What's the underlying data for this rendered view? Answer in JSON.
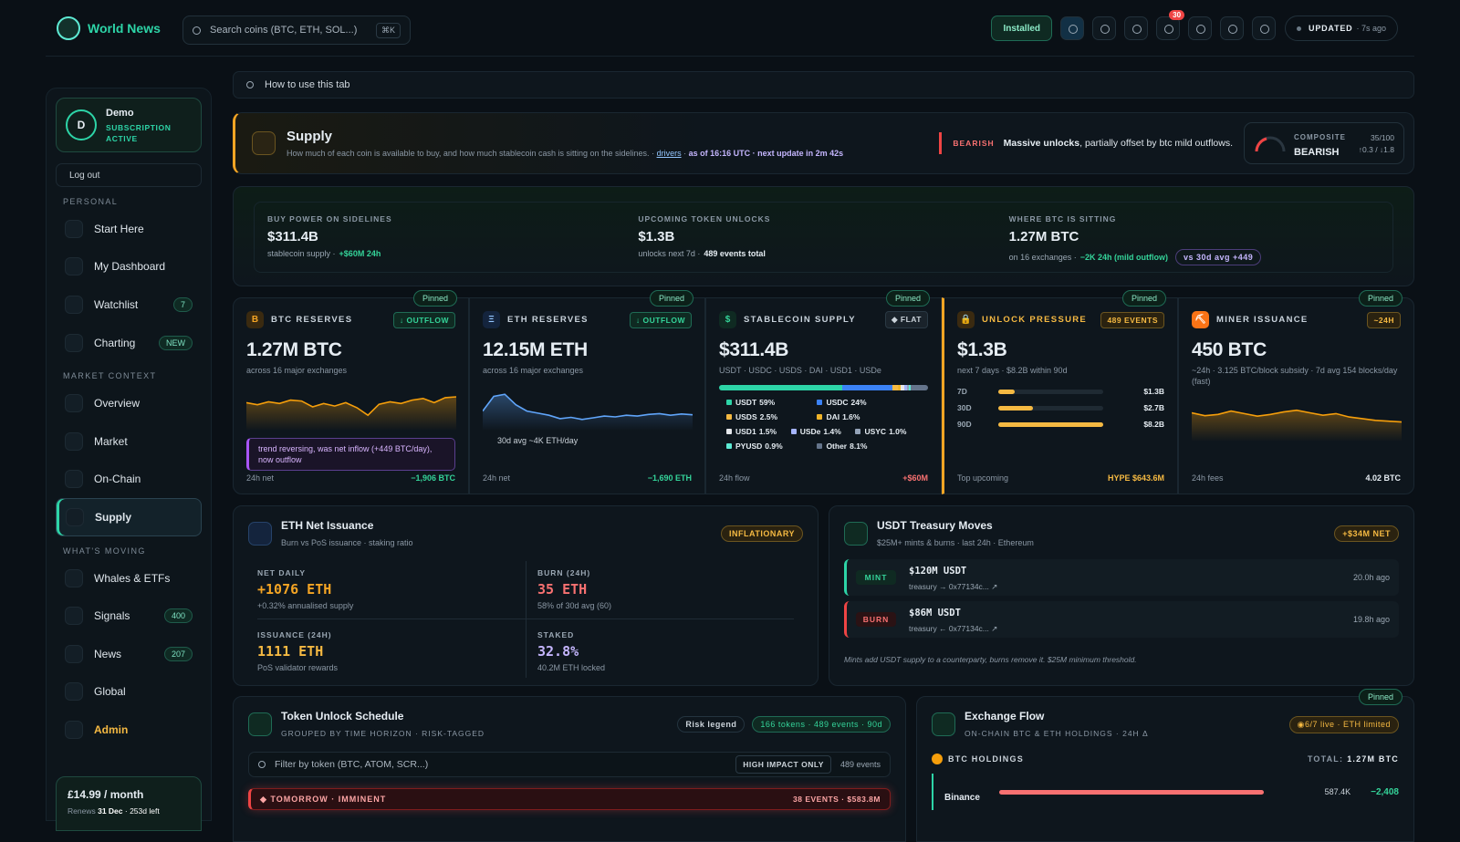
{
  "topbar": {
    "brand": "World News",
    "search": "Search coins (BTC, ETH, SOL...)",
    "shortcut": "⌘K",
    "installed": "Installed",
    "notifications": "30",
    "updated": "UPDATED",
    "updated_ago": "· 7s ago"
  },
  "sidebar": {
    "user": {
      "initial": "D",
      "name": "Demo",
      "status": "SUBSCRIPTION ACTIVE"
    },
    "logout": "Log out",
    "sections": [
      {
        "title": "PERSONAL",
        "items": [
          {
            "label": "Start Here"
          },
          {
            "label": "My Dashboard"
          },
          {
            "label": "Watchlist",
            "badge": "7"
          },
          {
            "label": "Charting",
            "badge": "NEW"
          }
        ]
      },
      {
        "title": "MARKET CONTEXT",
        "items": [
          {
            "label": "Overview"
          },
          {
            "label": "Market"
          },
          {
            "label": "On-Chain"
          },
          {
            "label": "Supply"
          }
        ]
      },
      {
        "title": "WHAT'S MOVING",
        "items": [
          {
            "label": "Whales & ETFs"
          },
          {
            "label": "Signals",
            "badge": "400"
          },
          {
            "label": "News",
            "badge": "207"
          },
          {
            "label": "Global"
          },
          {
            "label": "Admin"
          }
        ]
      }
    ],
    "plan": {
      "price": "£14.99 / month",
      "renews": "Renews",
      "date": "31 Dec",
      "left": "· 253d left"
    }
  },
  "help": "How to use this tab",
  "header": {
    "title": "Supply",
    "description": "How much of each coin is available to buy, and how much stablecoin cash is sitting on the sidelines.",
    "link": "drivers",
    "asof": "as of 16:16 UTC · next update in 2m 42s",
    "signal": "BEARISH",
    "signal_bold": "Massive unlocks",
    "signal_text": ", partially offset by btc mild outflows.",
    "composite_label": "COMPOSITE",
    "composite_value": "BEARISH",
    "score": "35/100",
    "change": "↑0.3 / ↓1.8"
  },
  "summary": [
    {
      "label": "BUY POWER ON SIDELINES",
      "value": "$311.4B",
      "sub": "stablecoin supply ·",
      "accent": "+$60M 24h"
    },
    {
      "label": "UPCOMING TOKEN UNLOCKS",
      "value": "$1.3B",
      "sub": "unlocks next 7d ·",
      "accent": "489 events total"
    },
    {
      "label": "WHERE BTC IS SITTING",
      "value": "1.27M BTC",
      "sub": "on 16 exchanges ·",
      "accent": "−2K 24h (mild outflow)",
      "pill": "vs 30d avg +449"
    }
  ],
  "pinned": "Pinned",
  "cards": [
    {
      "icon": "B",
      "title": "BTC RESERVES",
      "badge": "↓ OUTFLOW",
      "value": "1.27M BTC",
      "sub": "across 16 major exchanges",
      "foot_label": "24h net",
      "foot_value": "−1,906 BTC",
      "spark": {
        "values": [
          60,
          55,
          62,
          58,
          66,
          64,
          50,
          58,
          52,
          60,
          48,
          30,
          56,
          62,
          58,
          66,
          70,
          60,
          72,
          74
        ],
        "ylim": [
          0,
          100
        ]
      },
      "note": "trend reversing, was net inflow (+449 BTC/day), now outflow"
    },
    {
      "icon": "Ξ",
      "title": "ETH RESERVES",
      "badge": "↓ OUTFLOW",
      "value": "12.15M ETH",
      "sub": "across 16 major exchanges",
      "foot_label": "24h net",
      "foot_value": "−1,690 ETH",
      "spark": {
        "values": [
          40,
          75,
          80,
          55,
          40,
          35,
          30,
          22,
          25,
          20,
          24,
          28,
          26,
          30,
          28,
          32,
          34,
          30,
          33,
          31
        ],
        "ylim": [
          0,
          100
        ]
      },
      "note": "30d avg ~4K ETH/day"
    },
    {
      "icon": "$",
      "title": "STABLECOIN SUPPLY",
      "badge": "◆ FLAT",
      "value": "$311.4B",
      "sub": "USDT · USDC · USDS · DAI · USD1 · USDe",
      "foot_label": "24h flow",
      "foot_value": "+$60M",
      "segments": {
        "names": [
          "USDT",
          "USDC",
          "USDS",
          "DAI",
          "USD1",
          "USDe",
          "USYC",
          "PYUSD",
          "Other"
        ],
        "values": [
          59,
          24,
          2.5,
          1.6,
          1.5,
          1.4,
          1.0,
          0.9,
          8.1
        ],
        "value_labels": [
          "59%",
          "24%",
          "2.5%",
          "1.6%",
          "1.5%",
          "1.4%",
          "1.0%",
          "0.9%",
          "8.1%"
        ],
        "colors": [
          "#2dd4a7",
          "#3b82f6",
          "#f5b942",
          "#f0b429",
          "#e5e7eb",
          "#a5b4fc",
          "#94a3b8",
          "#5eead4",
          "#64748b"
        ]
      }
    },
    {
      "icon": "🔒",
      "title": "UNLOCK PRESSURE",
      "badge": "489 EVENTS",
      "value": "$1.3B",
      "sub": "next 7 days · $8.2B within 90d",
      "foot_label": "Top upcoming",
      "foot_value": "HYPE $643.6M",
      "rows": {
        "labels": [
          "7D",
          "30D",
          "90D"
        ],
        "values": [
          1.3,
          2.7,
          8.2
        ],
        "value_labels": [
          "$1.3B",
          "$2.7B",
          "$8.2B"
        ],
        "xlim": [
          0,
          8.2
        ]
      }
    },
    {
      "icon": "⛏",
      "title": "MINER ISSUANCE",
      "badge": "~24H",
      "value": "450 BTC",
      "sub": "~24h · 3.125 BTC/block subsidy · 7d avg 154 blocks/day (fast)",
      "foot_label": "24h fees",
      "foot_value": "4.02 BTC",
      "spark": {
        "values": [
          62,
          55,
          58,
          66,
          60,
          54,
          58,
          64,
          68,
          62,
          56,
          60,
          52,
          48,
          44,
          42,
          40
        ],
        "ylim": [
          0,
          100
        ]
      }
    }
  ],
  "eth_issuance": {
    "title": "ETH Net Issuance",
    "sub": "Burn vs PoS issuance · staking ratio",
    "badge": "INFLATIONARY",
    "stats": [
      {
        "label": "NET DAILY",
        "value": "+1076 ETH",
        "sub": "+0.32% annualised supply"
      },
      {
        "label": "BURN (24H)",
        "value": "35 ETH",
        "sub": "58% of 30d avg (60)"
      },
      {
        "label": "ISSUANCE (24H)",
        "value": "1111 ETH",
        "sub": "PoS validator rewards"
      },
      {
        "label": "STAKED",
        "value": "32.8%",
        "sub": "40.2M ETH locked"
      }
    ]
  },
  "usdt": {
    "title": "USDT Treasury Moves",
    "sub": "$25M+ mints & burns · last 24h · Ethereum",
    "badge": "+$34M NET",
    "rows": [
      {
        "type": "MINT",
        "amount": "$120M USDT",
        "detail": "treasury → 0x77134c... ↗",
        "time": "20.0h ago"
      },
      {
        "type": "BURN",
        "amount": "$86M USDT",
        "detail": "treasury ← 0x77134c... ↗",
        "time": "19.8h ago"
      }
    ],
    "note": "Mints add USDT supply to a counterparty, burns remove it. $25M minimum threshold."
  },
  "unlocks": {
    "title": "Token Unlock Schedule",
    "sub": "GROUPED BY TIME HORIZON · RISK-TAGGED",
    "legend": "Risk legend",
    "pill": "166 tokens · 489 events · 90d",
    "filter": "Filter by token (BTC, ATOM, SCR...)",
    "high_impact": "HIGH IMPACT ONLY",
    "events": "489 events",
    "group": "◆ TOMORROW · IMMINENT",
    "group_count": "38 EVENTS · $583.8M"
  },
  "exchange": {
    "title": "Exchange Flow",
    "sub": "ON-CHAIN BTC & ETH HOLDINGS · 24H Δ",
    "pill": "◉6/7 live · ETH limited",
    "section": "BTC HOLDINGS",
    "total_label": "TOTAL:",
    "total": "1.27M BTC",
    "row": {
      "name": "Binance",
      "value": "587.4K",
      "change": "−2,408"
    }
  }
}
